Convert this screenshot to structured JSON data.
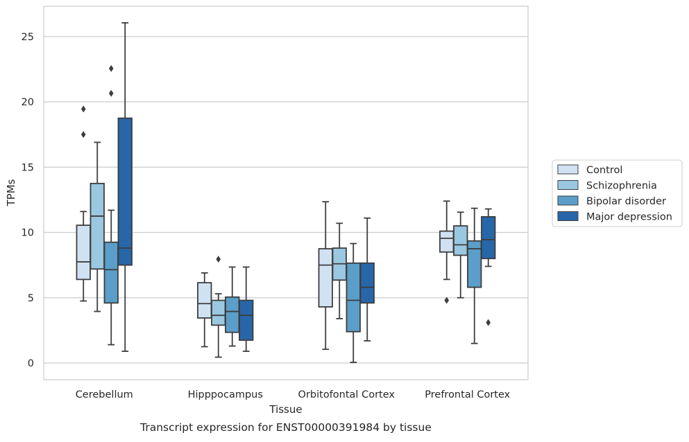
{
  "chart_data": {
    "type": "box",
    "title": "",
    "caption": "Transcript expression for ENST00000391984 by tissue",
    "xlabel": "Tissue",
    "ylabel": "TPMs",
    "ylim": [
      -1.2,
      27.2
    ],
    "yticks": [
      0,
      5,
      10,
      15,
      20,
      25
    ],
    "grid": "horizontal",
    "legend_position": "right",
    "categories": [
      "Cerebellum",
      "Hipppocampus",
      "Orbitofontal Cortex",
      "Prefrontal Cortex"
    ],
    "series": [
      {
        "name": "Control",
        "color": "#d0e1f2",
        "boxes": [
          {
            "whisker_low": 4.75,
            "q1": 6.4,
            "median": 7.75,
            "q3": 10.55,
            "whisker_high": 11.6,
            "outliers": [
              19.45,
              17.5
            ]
          },
          {
            "whisker_low": 1.25,
            "q1": 3.45,
            "median": 4.55,
            "q3": 6.15,
            "whisker_high": 6.9,
            "outliers": []
          },
          {
            "whisker_low": 1.05,
            "q1": 4.3,
            "median": 7.5,
            "q3": 8.75,
            "whisker_high": 12.35,
            "outliers": []
          },
          {
            "whisker_low": 6.4,
            "q1": 8.5,
            "median": 9.55,
            "q3": 10.1,
            "whisker_high": 12.4,
            "outliers": [
              4.8
            ]
          }
        ]
      },
      {
        "name": "Schizophrenia",
        "color": "#9ac8e0",
        "boxes": [
          {
            "whisker_low": 3.95,
            "q1": 7.2,
            "median": 11.25,
            "q3": 13.75,
            "whisker_high": 16.9,
            "outliers": []
          },
          {
            "whisker_low": 0.45,
            "q1": 2.9,
            "median": 3.65,
            "q3": 4.8,
            "whisker_high": 5.3,
            "outliers": [
              7.95
            ]
          },
          {
            "whisker_low": 3.4,
            "q1": 6.35,
            "median": 7.6,
            "q3": 8.8,
            "whisker_high": 10.7,
            "outliers": []
          },
          {
            "whisker_low": 5.0,
            "q1": 8.25,
            "median": 9.05,
            "q3": 10.5,
            "whisker_high": 11.55,
            "outliers": []
          }
        ]
      },
      {
        "name": "Bipolar disorder",
        "color": "#5a9ec9",
        "boxes": [
          {
            "whisker_low": 1.4,
            "q1": 4.6,
            "median": 7.15,
            "q3": 9.25,
            "whisker_high": 11.7,
            "outliers": [
              22.55,
              20.65
            ]
          },
          {
            "whisker_low": 1.3,
            "q1": 2.35,
            "median": 3.95,
            "q3": 5.05,
            "whisker_high": 7.35,
            "outliers": []
          },
          {
            "whisker_low": 0.05,
            "q1": 2.4,
            "median": 4.8,
            "q3": 7.65,
            "whisker_high": 9.15,
            "outliers": []
          },
          {
            "whisker_low": 1.5,
            "q1": 5.8,
            "median": 8.75,
            "q3": 9.35,
            "whisker_high": 11.85,
            "outliers": []
          }
        ]
      },
      {
        "name": "Major depression",
        "color": "#2767a9",
        "boxes": [
          {
            "whisker_low": 0.9,
            "q1": 7.5,
            "median": 8.8,
            "q3": 18.75,
            "whisker_high": 26.05,
            "outliers": []
          },
          {
            "whisker_low": 0.9,
            "q1": 1.75,
            "median": 3.65,
            "q3": 4.8,
            "whisker_high": 7.35,
            "outliers": []
          },
          {
            "whisker_low": 1.7,
            "q1": 4.6,
            "median": 5.8,
            "q3": 7.65,
            "whisker_high": 11.1,
            "outliers": []
          },
          {
            "whisker_low": 7.4,
            "q1": 8.0,
            "median": 9.45,
            "q3": 11.2,
            "whisker_high": 11.8,
            "outliers": [
              3.1
            ]
          }
        ]
      }
    ]
  }
}
